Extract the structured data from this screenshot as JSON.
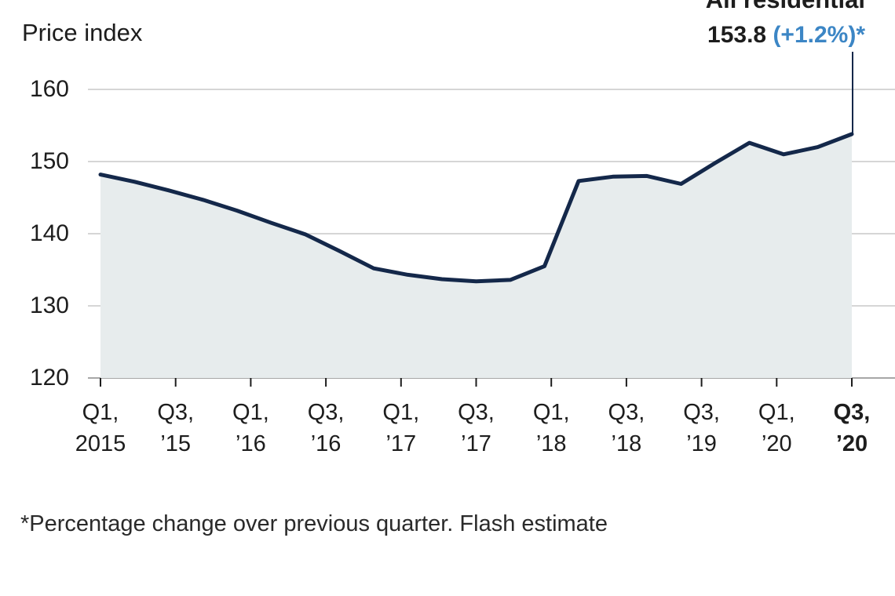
{
  "title": "Price index",
  "annotation": {
    "series_label": "All residential",
    "value": "153.8",
    "change": "(+1.2%)*"
  },
  "footnote": "*Percentage change over previous quarter. Flash estimate",
  "colors": {
    "line": "#14284a",
    "area": "#e7eced",
    "accent_blue": "#3c86c5",
    "gridline": "#c9c9c9",
    "baseline": "#8a8a8a",
    "tick": "#1d1d1d",
    "text": "#1d1d1d"
  },
  "chart_data": {
    "type": "area",
    "title": "Price index",
    "ylabel": "Price index",
    "ylim": [
      120,
      160
    ],
    "y_ticks": [
      160,
      150,
      140,
      130,
      120
    ],
    "grid": true,
    "x_tick_labels": [
      {
        "line1": "Q1,",
        "line2": "2015",
        "bold": false
      },
      {
        "line1": "Q3,",
        "line2": "’15",
        "bold": false
      },
      {
        "line1": "Q1,",
        "line2": "’16",
        "bold": false
      },
      {
        "line1": "Q3,",
        "line2": "’16",
        "bold": false
      },
      {
        "line1": "Q1,",
        "line2": "’17",
        "bold": false
      },
      {
        "line1": "Q3,",
        "line2": "’17",
        "bold": false
      },
      {
        "line1": "Q1,",
        "line2": "’18",
        "bold": false
      },
      {
        "line1": "Q3,",
        "line2": "’18",
        "bold": false
      },
      {
        "line1": "Q3,",
        "line2": "’19",
        "bold": false
      },
      {
        "line1": "Q1,",
        "line2": "’20",
        "bold": false
      },
      {
        "line1": "Q3,",
        "line2": "’20",
        "bold": true
      }
    ],
    "series": [
      {
        "name": "All residential",
        "x": [
          "Q1 2015",
          "Q2 2015",
          "Q3 2015",
          "Q4 2015",
          "Q1 2016",
          "Q2 2016",
          "Q3 2016",
          "Q4 2016",
          "Q1 2017",
          "Q2 2017",
          "Q3 2017",
          "Q4 2017",
          "Q1 2018",
          "Q2 2018",
          "Q3 2018",
          "Q4 2018",
          "Q1 2019",
          "Q2 2019",
          "Q3 2019",
          "Q4 2019",
          "Q1 2020",
          "Q2 2020",
          "Q3 2020"
        ],
        "values": [
          148.2,
          147.2,
          146.0,
          144.7,
          143.2,
          141.5,
          139.9,
          137.6,
          135.2,
          134.3,
          133.7,
          133.4,
          133.6,
          135.5,
          147.3,
          147.9,
          148.0,
          146.9,
          149.8,
          152.6,
          151.0,
          152.0,
          153.8
        ]
      }
    ],
    "last_point": {
      "label": "Q3 2020",
      "value": 153.8,
      "change_pct": "+1.2%",
      "flash_estimate": true
    }
  }
}
